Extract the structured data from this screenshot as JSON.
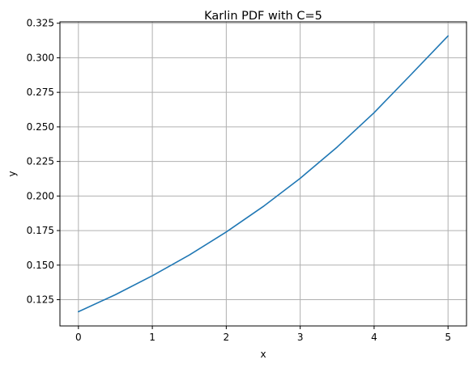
{
  "chart_data": {
    "type": "line",
    "title": "Karlin PDF with C=5",
    "xlabel": "x",
    "ylabel": "y",
    "xlim": [
      -0.25,
      5.25
    ],
    "ylim": [
      0.106,
      0.326
    ],
    "xticks": [
      0,
      1,
      2,
      3,
      4,
      5
    ],
    "xtick_labels": [
      "0",
      "1",
      "2",
      "3",
      "4",
      "5"
    ],
    "yticks": [
      0.125,
      0.15,
      0.175,
      0.2,
      0.225,
      0.25,
      0.275,
      0.3,
      0.325
    ],
    "ytick_labels": [
      "0.125",
      "0.150",
      "0.175",
      "0.200",
      "0.225",
      "0.250",
      "0.275",
      "0.300",
      "0.325"
    ],
    "grid": true,
    "series": [
      {
        "color": "#1f77b4",
        "x": [
          0,
          0.5,
          1,
          1.5,
          2,
          2.5,
          3,
          3.5,
          4,
          4.5,
          5
        ],
        "y": [
          0.1163,
          0.1286,
          0.1423,
          0.1573,
          0.174,
          0.1924,
          0.2128,
          0.2354,
          0.2603,
          0.2879,
          0.3158
        ]
      }
    ]
  }
}
